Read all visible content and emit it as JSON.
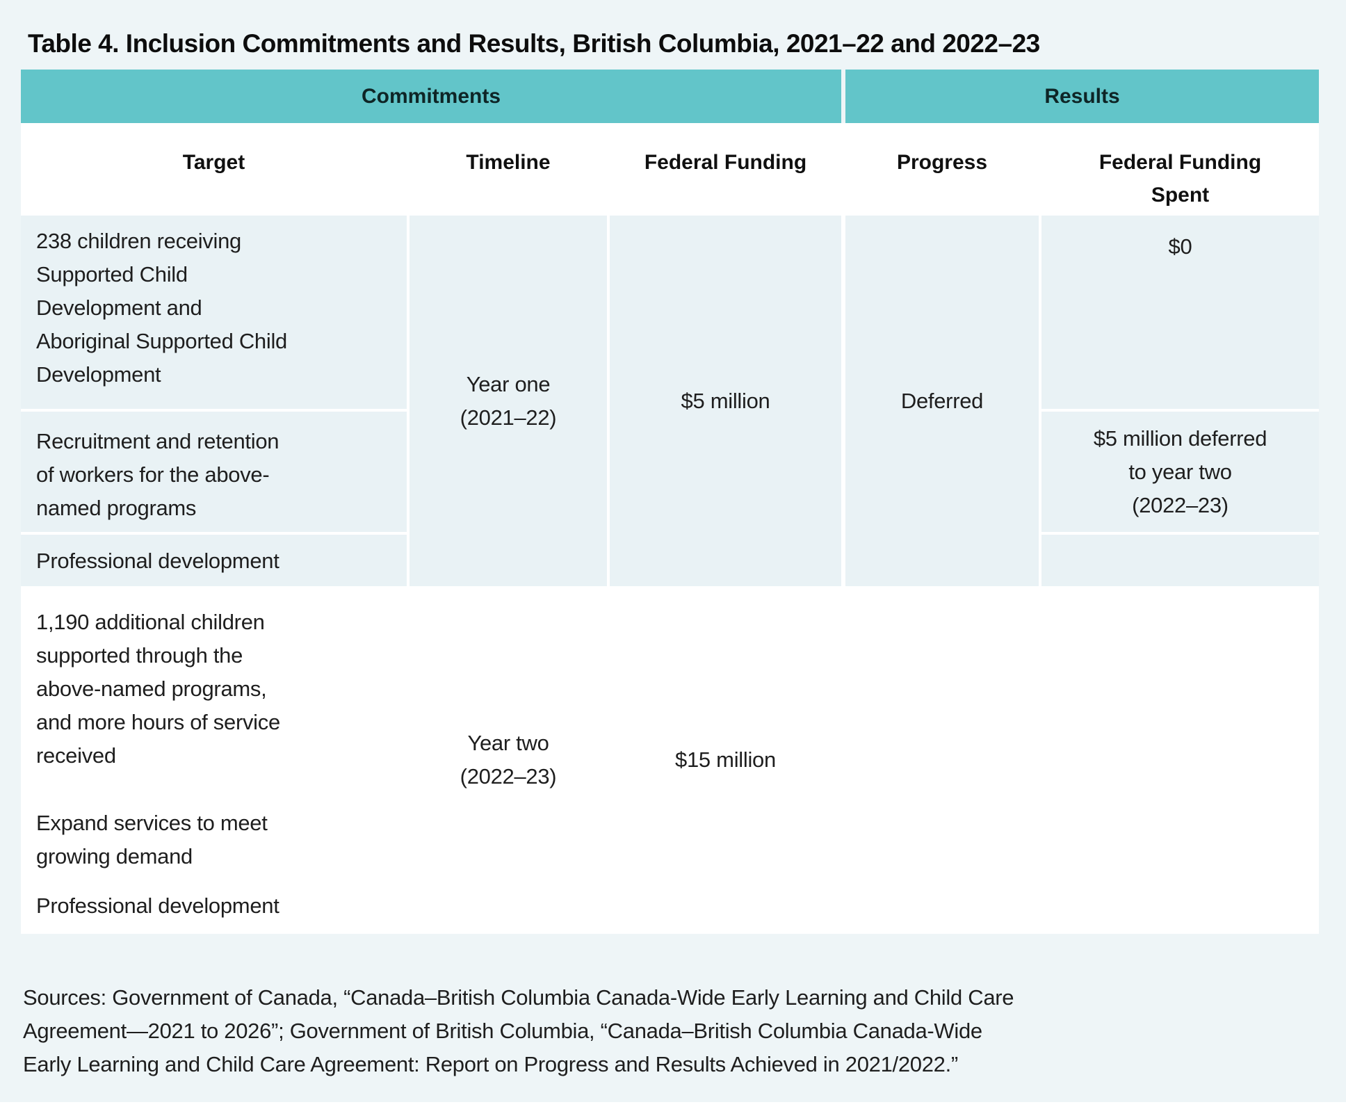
{
  "colors": {
    "teal": "#62c5c9",
    "page_bg": "#eef5f7",
    "cell_bg": "#e9f2f5"
  },
  "title": "Table 4. Inclusion Commitments and Results, British Columbia, 2021–22 and 2022–23",
  "table": {
    "groups": {
      "commitments": "Commitments",
      "results": "Results"
    },
    "columns": {
      "target": "Target",
      "timeline": "Timeline",
      "federal_funding": "Federal Funding",
      "progress": "Progress",
      "federal_funding_spent": "Federal Funding\nSpent"
    },
    "year_one": {
      "targets": [
        "238 children receiving\nSupported Child\nDevelopment and\nAboriginal Supported Child\nDevelopment",
        "Recruitment and retention\nof workers for the above-\nnamed programs",
        "Professional development"
      ],
      "timeline": "Year one\n(2021–22)",
      "federal_funding": "$5 million",
      "progress": "Deferred",
      "federal_funding_spent": [
        "$0",
        "$5 million deferred\nto year two\n(2022–23)",
        ""
      ]
    },
    "year_two": {
      "targets": [
        "1,190 additional children\nsupported through the\nabove-named programs,\nand more hours of service\nreceived",
        "Expand services to meet\ngrowing demand",
        "Professional development"
      ],
      "timeline": "Year two\n(2022–23)",
      "federal_funding": "$15 million",
      "progress": "",
      "federal_funding_spent": ""
    }
  },
  "sources": "Sources: Government of Canada, “Canada–British Columbia Canada-Wide Early Learning and Child Care\nAgreement—2021 to 2026”; Government of British Columbia, “Canada–British Columbia Canada-Wide\nEarly Learning and Child Care Agreement: Report on Progress and Results Achieved in 2021/2022.”"
}
